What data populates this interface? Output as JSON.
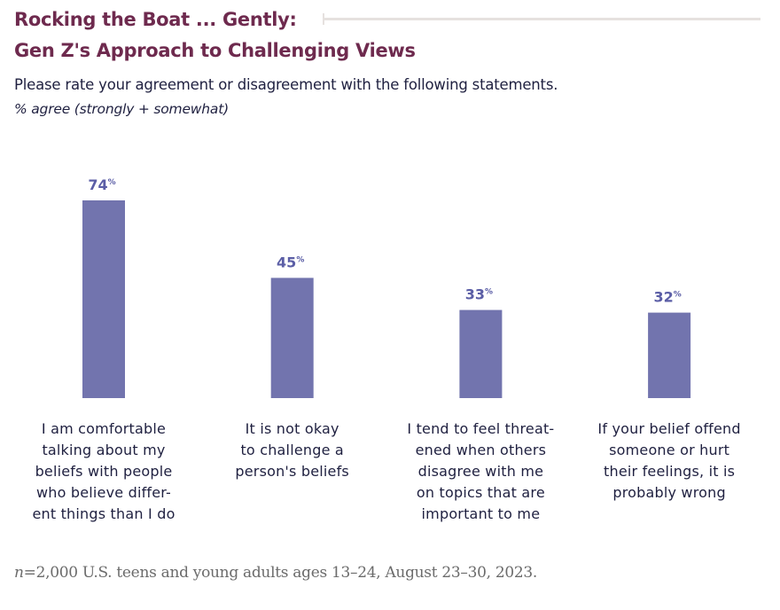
{
  "chart_data": {
    "type": "bar",
    "title": "Rocking the Boat ... Gently:",
    "subtitle_line2": "Gen Z's Approach to Challenging Views",
    "question": "Please rate your agreement or disagreement with the following statements.",
    "ylabel": "% agree (strongly + somewhat)",
    "xlabel": "",
    "ylim": [
      0,
      100
    ],
    "grid": false,
    "legend": "none",
    "value_suffix": "%",
    "categories": [
      "I am comfortable talking about my beliefs with people who believe different things than I do",
      "It is not okay to challenge a person's beliefs",
      "I tend to feel threatened when others disagree with me on topics that are important to me",
      "If your belief offend someone or hurt their feelings, it is probably wrong"
    ],
    "category_lines": [
      [
        "I am comfortable",
        "talking about my",
        "beliefs with people",
        "who believe differ-",
        "ent things than I do"
      ],
      [
        "It is not okay",
        "to challenge a",
        "person's beliefs"
      ],
      [
        "I tend to feel threat-",
        "ened when others",
        "disagree with me",
        "on topics that are",
        "important to me"
      ],
      [
        "If your belief offend",
        "someone or hurt",
        "their feelings, it is",
        "probably wrong"
      ]
    ],
    "values": [
      74,
      45,
      33,
      32
    ],
    "colors": {
      "bar": "#7274ae",
      "value_label": "#5b5ea6",
      "title": "#6e2a4e",
      "text": "#1f2040",
      "footer": "#6b6b6b"
    }
  },
  "footer": {
    "n_label": "n",
    "text": "=2,000 U.S. teens and young adults ages 13–24, August 23–30, 2023."
  }
}
